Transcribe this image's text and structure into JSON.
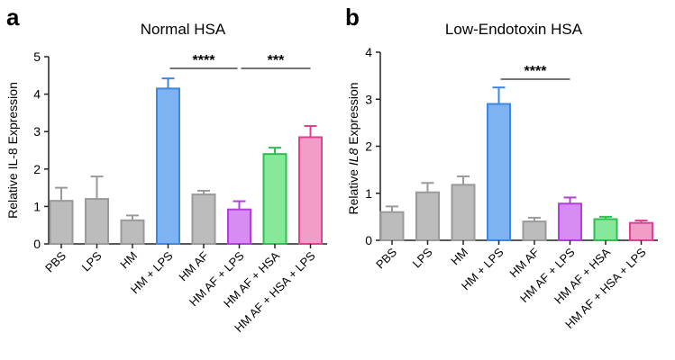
{
  "chart_data": [
    {
      "type": "bar",
      "panel_label": "a",
      "title": "Normal HSA",
      "ylabel": "Relative IL-8 Expression",
      "ylabel_parts": [
        {
          "text": "Relative ",
          "italic": false
        },
        {
          "text": "IL-8",
          "italic": false
        },
        {
          "text": " Expression",
          "italic": false
        }
      ],
      "ylim": [
        0,
        5
      ],
      "yticks": [
        0,
        1,
        2,
        3,
        4,
        5
      ],
      "categories": [
        "PBS",
        "LPS",
        "HM",
        "HM + LPS",
        "HM AF",
        "HM AF + LPS",
        "HM AF + HSA",
        "HM AF + HSA + LPS"
      ],
      "values": [
        1.15,
        1.2,
        0.63,
        4.15,
        1.32,
        0.92,
        2.4,
        2.85
      ],
      "errors": [
        0.35,
        0.6,
        0.13,
        0.27,
        0.1,
        0.22,
        0.17,
        0.3
      ],
      "colors": [
        "#bcbcbc",
        "#bcbcbc",
        "#bcbcbc",
        "#7fb2f0",
        "#bcbcbc",
        "#d68cf2",
        "#87e89a",
        "#f29cc8"
      ],
      "edge_colors": [
        "#9a9a9a",
        "#9a9a9a",
        "#9a9a9a",
        "#3d87e0",
        "#9a9a9a",
        "#b23fdc",
        "#2fbf4f",
        "#e0408f"
      ],
      "annotations": [
        {
          "from": 3,
          "to": 5,
          "text": "****"
        },
        {
          "from": 5,
          "to": 7,
          "text": "***"
        }
      ]
    },
    {
      "type": "bar",
      "panel_label": "b",
      "title": "Low-Endotoxin HSA",
      "ylabel": "Relative IL8 Expression",
      "ylabel_parts": [
        {
          "text": "Relative ",
          "italic": false
        },
        {
          "text": "IL8",
          "italic": true
        },
        {
          "text": " Expression",
          "italic": false
        }
      ],
      "ylim": [
        0,
        4
      ],
      "yticks": [
        0,
        1,
        2,
        3,
        4
      ],
      "categories": [
        "PBS",
        "LPS",
        "HM",
        "HM + LPS",
        "HM AF",
        "HM AF + LPS",
        "HM AF + HSA",
        "HM AF + HSA + LPS"
      ],
      "values": [
        0.6,
        1.02,
        1.18,
        2.9,
        0.4,
        0.78,
        0.45,
        0.37
      ],
      "errors": [
        0.12,
        0.2,
        0.18,
        0.35,
        0.08,
        0.13,
        0.05,
        0.05
      ],
      "colors": [
        "#bcbcbc",
        "#bcbcbc",
        "#bcbcbc",
        "#7fb2f0",
        "#bcbcbc",
        "#d68cf2",
        "#87e89a",
        "#f29cc8"
      ],
      "edge_colors": [
        "#9a9a9a",
        "#9a9a9a",
        "#9a9a9a",
        "#3d87e0",
        "#9a9a9a",
        "#b23fdc",
        "#2fbf4f",
        "#e0408f"
      ],
      "annotations": [
        {
          "from": 3,
          "to": 5,
          "text": "****"
        }
      ]
    }
  ]
}
